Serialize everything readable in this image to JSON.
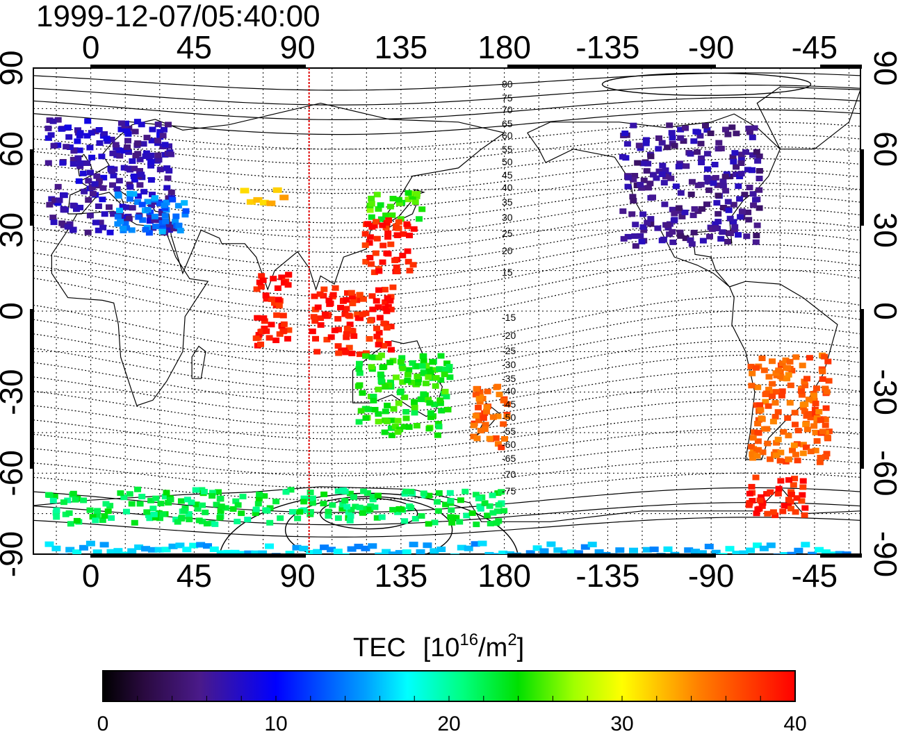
{
  "title": "1999-12-07/05:40:00",
  "axes": {
    "lon_ticks": [
      "0",
      "45",
      "90",
      "135",
      "180",
      "-135",
      "-90",
      "-45"
    ],
    "lat_ticks": [
      "90",
      "60",
      "30",
      "0",
      "-30",
      "-60",
      "-90"
    ],
    "lon_values": [
      0,
      45,
      90,
      135,
      180,
      225,
      270,
      315
    ],
    "lat_values": [
      90,
      60,
      30,
      0,
      -30,
      -60,
      -90
    ],
    "lon_range": [
      -25,
      335
    ],
    "lat_range": [
      -90,
      90
    ],
    "grid": "dotted"
  },
  "meridian_marker": {
    "lon": 95,
    "color": "#e00000"
  },
  "contour_labels": [
    "80",
    "75",
    "70",
    "65",
    "60",
    "55",
    "50",
    "45",
    "40",
    "35",
    "30",
    "25",
    "20",
    "15",
    "-15",
    "-20",
    "-25",
    "-30",
    "-35",
    "-40",
    "-45",
    "-50",
    "-55",
    "-60",
    "-65",
    "-70",
    "-75"
  ],
  "colorbar": {
    "title": "TEC",
    "unit_base": "[10",
    "unit_exp": "16",
    "unit_mid": "/m",
    "unit_exp2": "2",
    "unit_end": "]",
    "ticks": [
      "0",
      "10",
      "20",
      "30",
      "40"
    ],
    "tick_values": [
      0,
      10,
      20,
      30,
      40
    ],
    "range": [
      0,
      40
    ],
    "colormap": "jet-like (black-purple-blue-cyan-green-yellow-red)"
  },
  "chart_data": {
    "type": "heatmap",
    "title": "1999-12-07/05:40:00",
    "xlabel": "",
    "ylabel": "",
    "value_label": "TEC [10^16/m^2]",
    "value_range": [
      0,
      40
    ],
    "regions": [
      {
        "lon_min": -20,
        "lon_max": 35,
        "lat_min": 30,
        "lat_max": 72,
        "tec": 7
      },
      {
        "lon_min": 10,
        "lon_max": 40,
        "lat_min": 30,
        "lat_max": 45,
        "tec": 14
      },
      {
        "lon_min": 65,
        "lon_max": 85,
        "lat_min": 40,
        "lat_max": 46,
        "tec": 33
      },
      {
        "lon_min": 120,
        "lon_max": 145,
        "lat_min": 35,
        "lat_max": 45,
        "tec": 25
      },
      {
        "lon_min": 118,
        "lon_max": 140,
        "lat_min": 15,
        "lat_max": 35,
        "tec": 39
      },
      {
        "lon_min": 95,
        "lon_max": 130,
        "lat_min": -15,
        "lat_max": 10,
        "tec": 39
      },
      {
        "lon_min": 70,
        "lon_max": 85,
        "lat_min": -12,
        "lat_max": 15,
        "tec": 39
      },
      {
        "lon_min": 115,
        "lon_max": 155,
        "lat_min": -45,
        "lat_max": -15,
        "tec": 24
      },
      {
        "lon_min": 165,
        "lon_max": 180,
        "lat_min": -50,
        "lat_max": -25,
        "tec": 36
      },
      {
        "lon_min": 230,
        "lon_max": 290,
        "lat_min": 25,
        "lat_max": 70,
        "tec": 6
      },
      {
        "lon_min": 285,
        "lon_max": 320,
        "lat_min": -55,
        "lat_max": -15,
        "tec": 36
      },
      {
        "lon_min": 285,
        "lon_max": 310,
        "lat_min": -75,
        "lat_max": -60,
        "tec": 39
      },
      {
        "lon_min": -20,
        "lon_max": 180,
        "lat_min": -78,
        "lat_max": -65,
        "tec": 22
      },
      {
        "lon_min": -20,
        "lon_max": 330,
        "lat_min": -90,
        "lat_max": -85,
        "tec": 16
      }
    ]
  }
}
